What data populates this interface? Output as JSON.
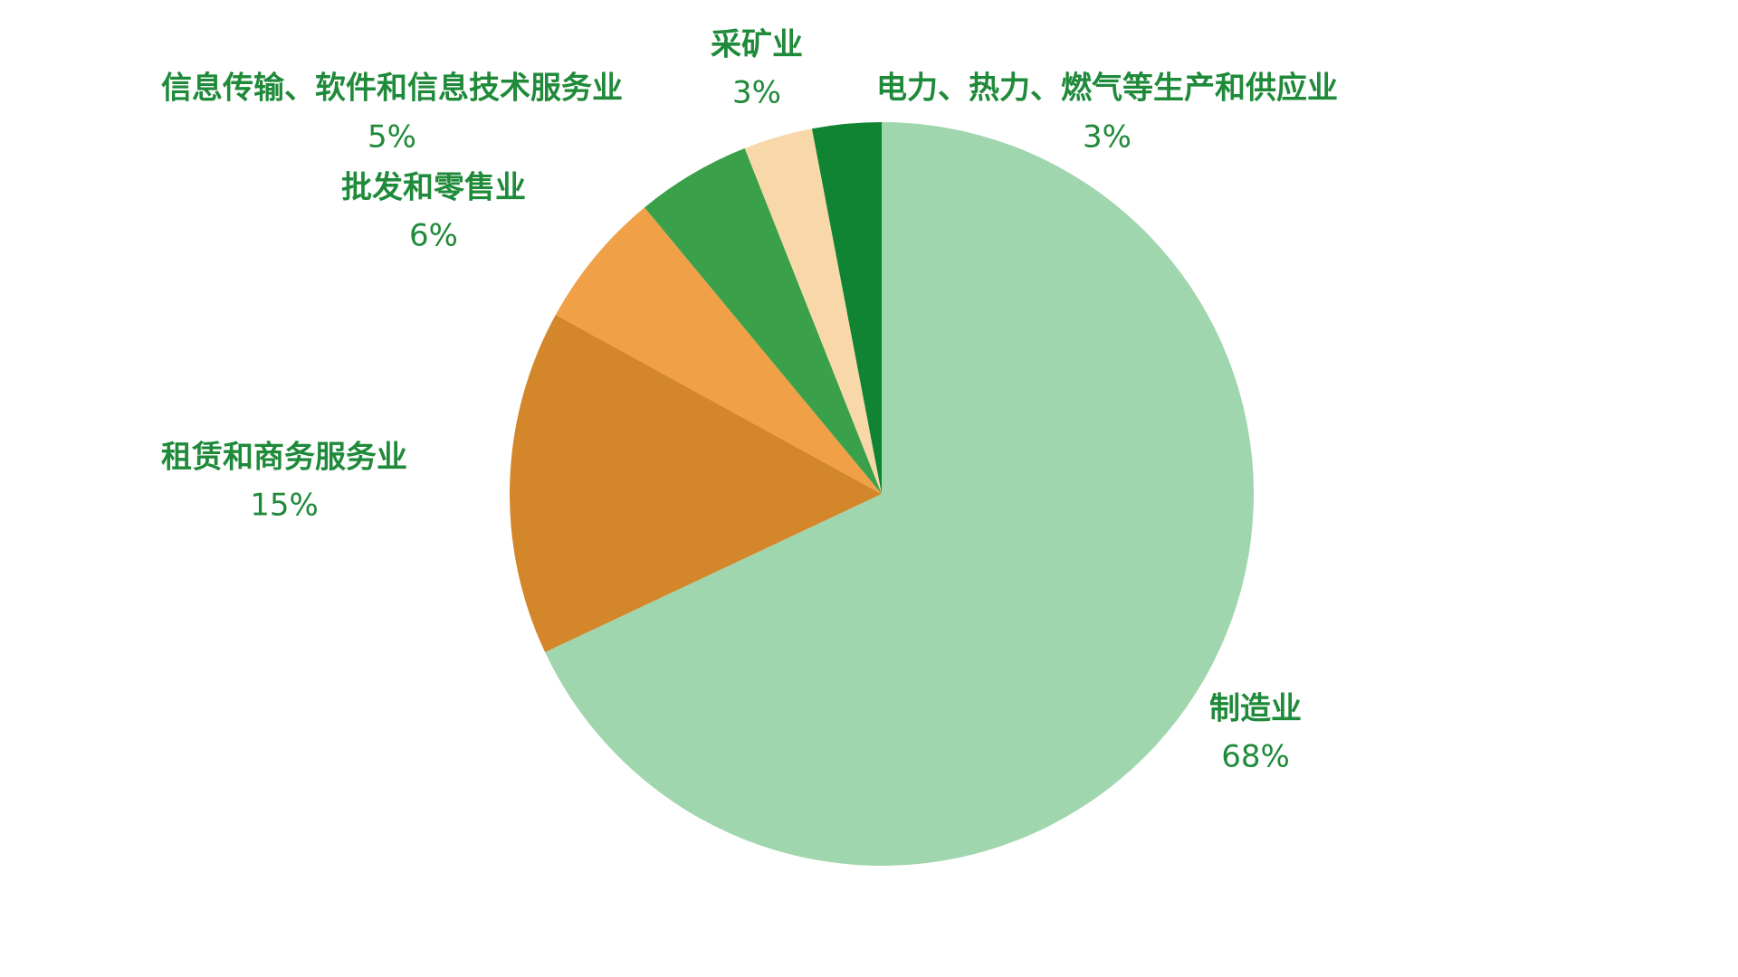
{
  "chart_data": {
    "type": "pie",
    "categories": [
      "制造业",
      "租赁和商务服务业",
      "批发和零售业",
      "信息传输、软件和信息技术服务业",
      "采矿业",
      "电力、热力、燃气等生产和供应业"
    ],
    "values": [
      68,
      15,
      6,
      5,
      3,
      3
    ],
    "value_labels": [
      "68%",
      "15%",
      "6%",
      "5%",
      "3%",
      "3%"
    ],
    "colors": [
      "#a0d6ae",
      "#d4862a",
      "#f0a046",
      "#3aa04a",
      "#f8d8a8",
      "#108432"
    ]
  }
}
